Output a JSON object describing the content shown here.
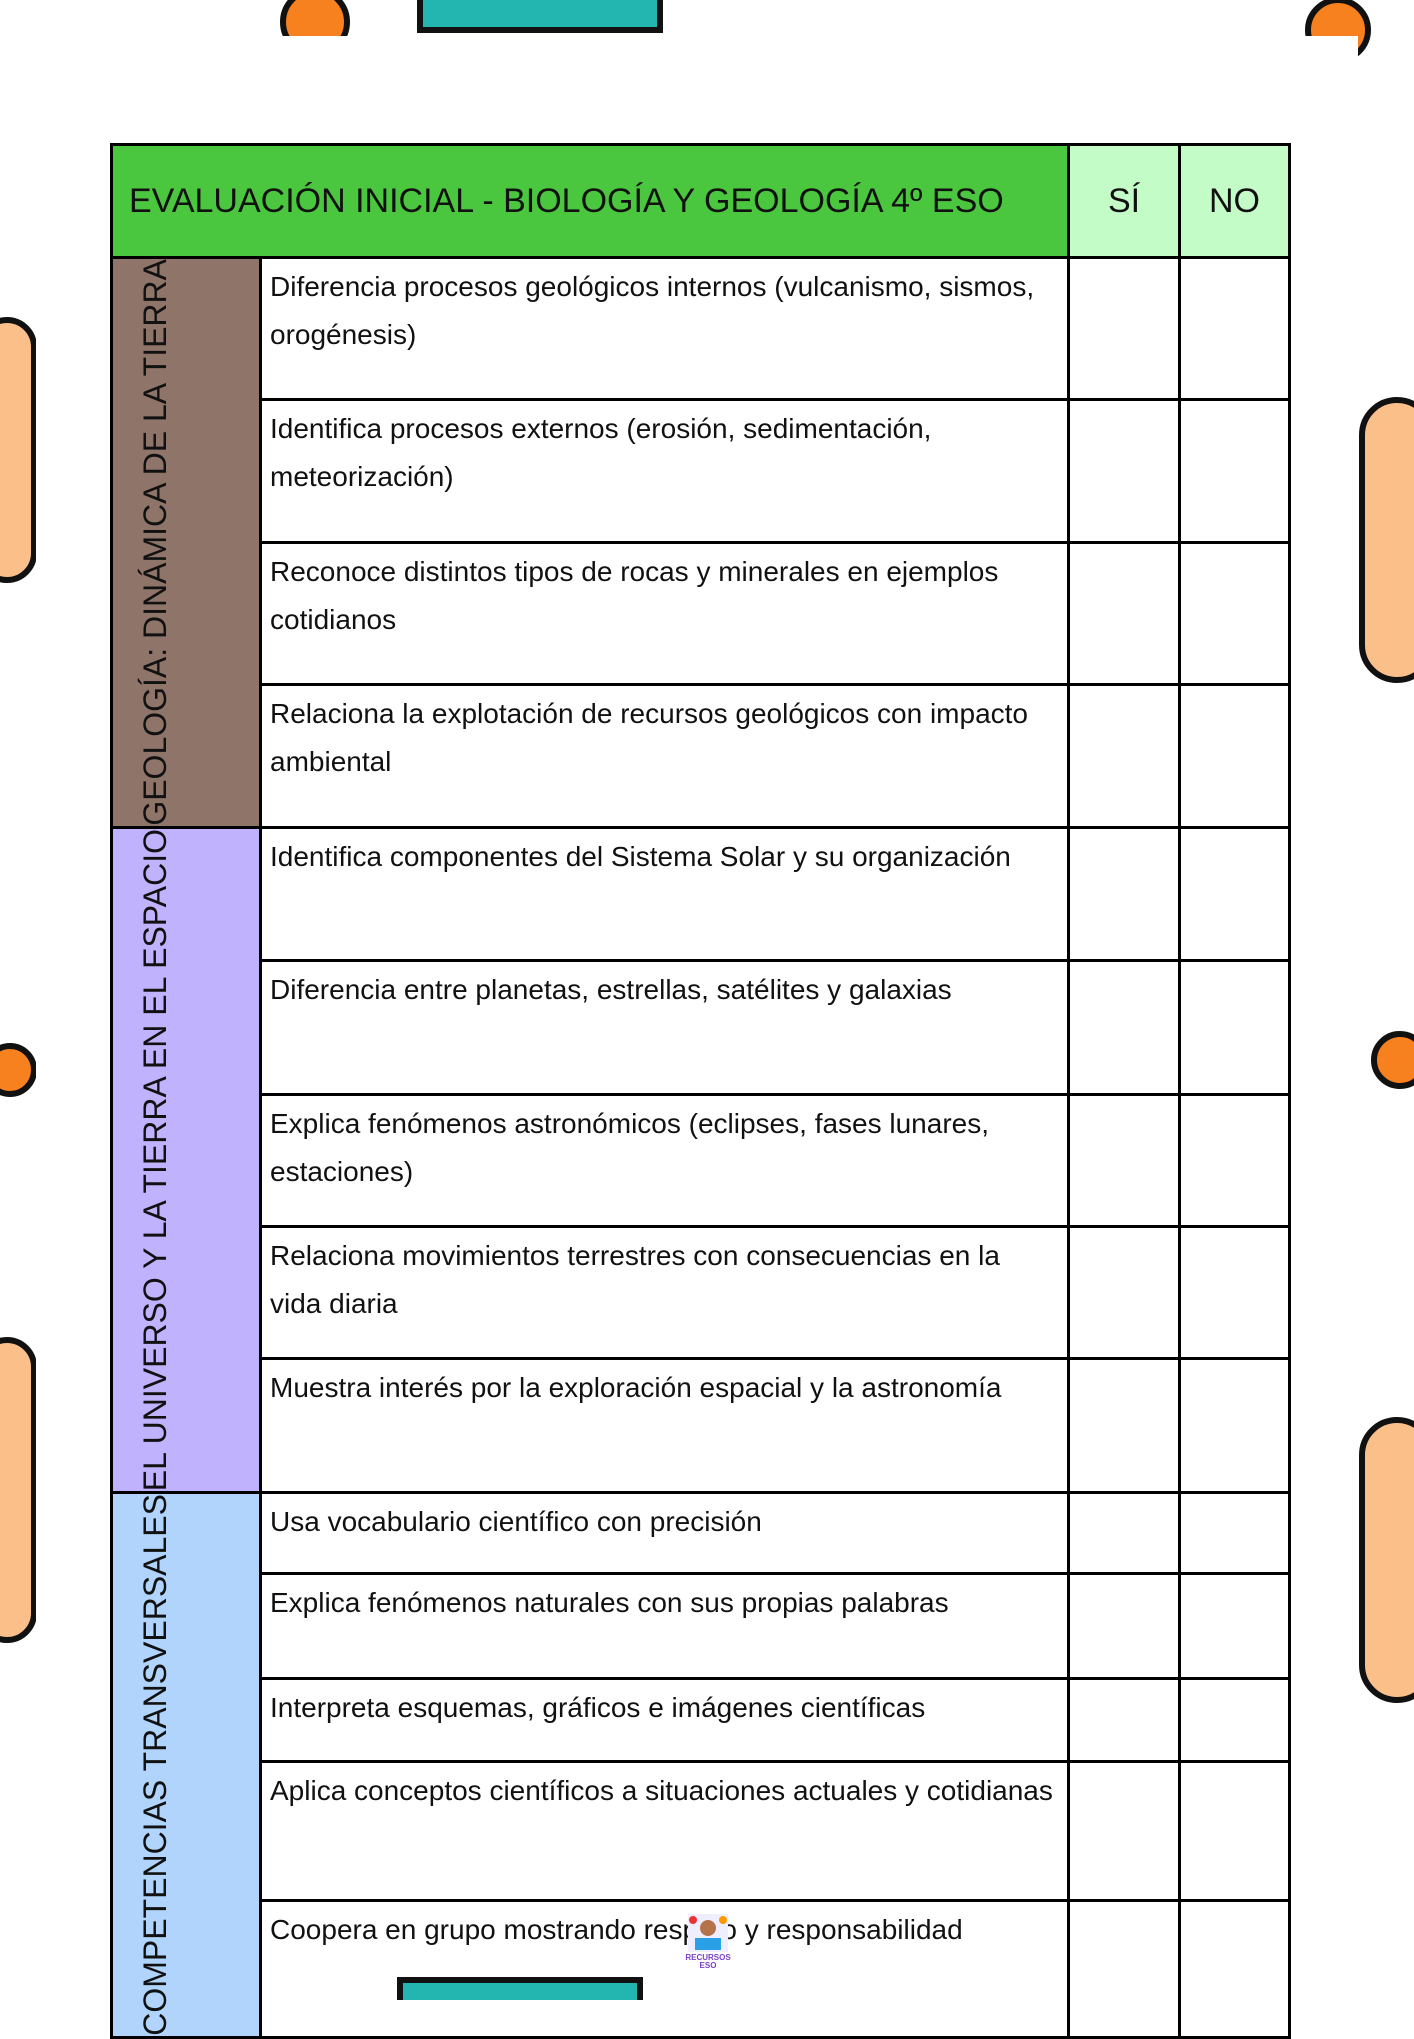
{
  "header": {
    "title": "EVALUACIÓN INICIAL - BIOLOGÍA Y GEOLOGÍA 4º ESO",
    "yes": "SÍ",
    "no": "NO"
  },
  "colors": {
    "header": "#4bc63f",
    "yes_no": "#c4fcc8",
    "geologia": "#8f7569",
    "universo": "#c0b2fc",
    "competencias": "#b0d4fc"
  },
  "sections": [
    {
      "label": "GEOLOGÍA: DINÁMICA DE LA TIERRA",
      "items": [
        "Diferencia procesos geológicos internos (vulcanismo, sismos, orogénesis)",
        "Identifica procesos externos (erosión, sedimentación, meteorización)",
        "Reconoce distintos tipos de rocas y minerales en ejemplos cotidianos",
        "Relaciona la explotación de recursos geológicos con impacto ambiental"
      ]
    },
    {
      "label": "EL UNIVERSO Y LA TIERRA EN EL ESPACIO",
      "items": [
        "Identifica componentes del Sistema Solar y su organización",
        "Diferencia entre planetas, estrellas, satélites y galaxias",
        "Explica fenómenos astronómicos (eclipses, fases lunares, estaciones)",
        "Relaciona movimientos terrestres con consecuencias en la vida diaria",
        "Muestra interés por la exploración espacial y la astronomía"
      ]
    },
    {
      "label": "COMPETENCIAS TRANSVERSALES",
      "items": [
        "Usa vocabulario científico con precisión",
        "Explica fenómenos naturales con sus propias palabras",
        "Interpreta esquemas, gráficos e imágenes científicas",
        "Aplica conceptos científicos a situaciones actuales y cotidianas",
        "Coopera en grupo mostrando respeto y responsabilidad"
      ]
    }
  ],
  "logo": {
    "text": "RECURSOS ESO"
  }
}
